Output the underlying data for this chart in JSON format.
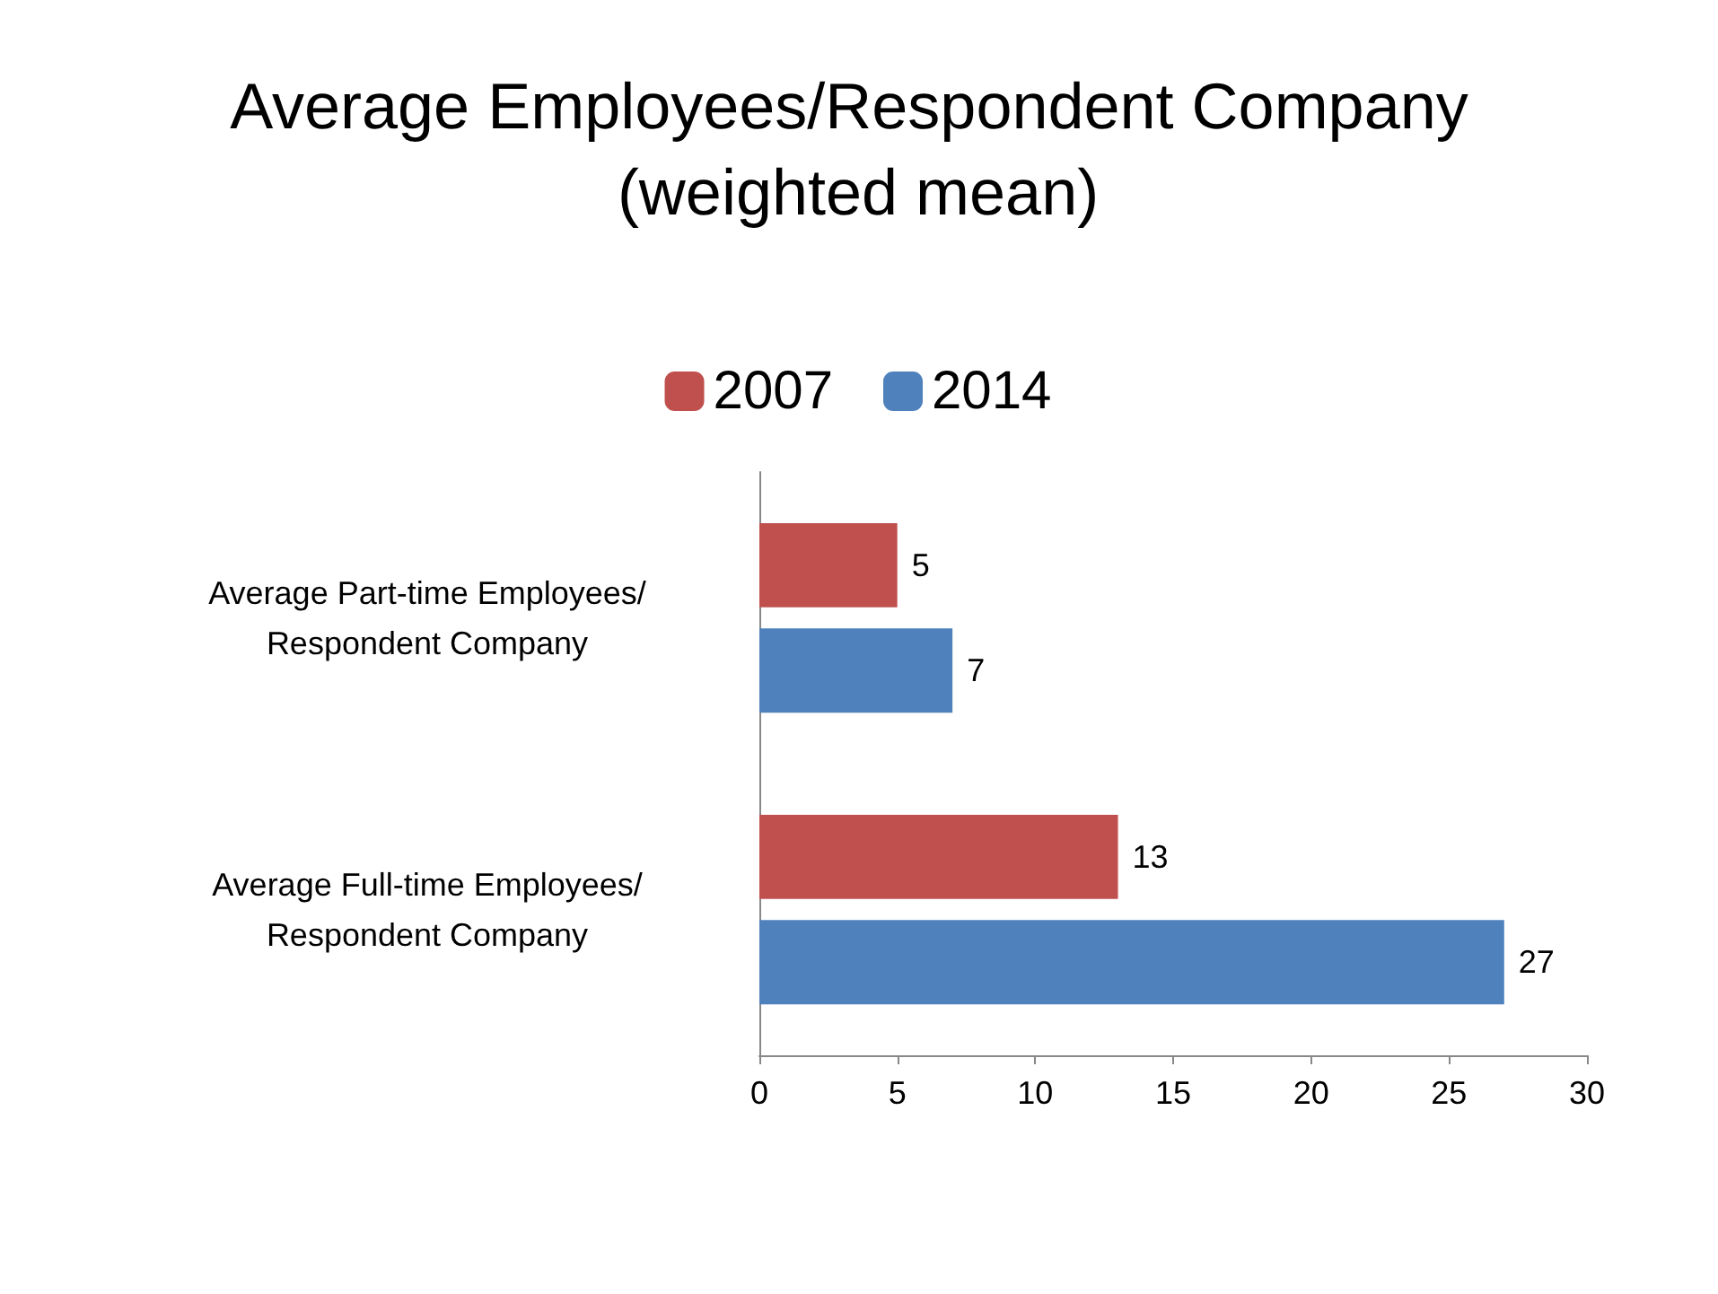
{
  "chart_data": {
    "type": "bar",
    "orientation": "horizontal",
    "title": "Average Employees/Respondent Company (weighted mean)",
    "categories": [
      "Average Part-time Employees/Respondent Company",
      "Average Full-time Employees/Respondent Company"
    ],
    "series": [
      {
        "name": "2007",
        "color": "#c0504d",
        "values": [
          5,
          13
        ]
      },
      {
        "name": "2014",
        "color": "#4f81bd",
        "values": [
          7,
          27
        ]
      }
    ],
    "xlim": [
      0,
      30
    ],
    "xticks": [
      0,
      5,
      10,
      15,
      20,
      25,
      30
    ],
    "grid": false,
    "legend": "top",
    "data_labels": true
  }
}
